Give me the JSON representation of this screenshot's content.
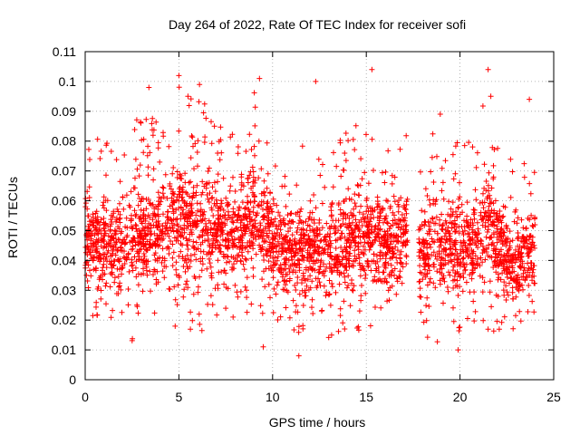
{
  "chart_data": {
    "type": "scatter",
    "title": "Day 264 of 2022, Rate Of TEC Index for receiver sofi",
    "xlabel": "GPS time / hours",
    "ylabel": "ROTI / TECUs",
    "xlim": [
      0,
      25
    ],
    "ylim": [
      0,
      0.11
    ],
    "xticks": [
      0,
      5,
      10,
      15,
      20,
      25
    ],
    "yticks": [
      0,
      0.01,
      0.02,
      0.03,
      0.04,
      0.05,
      0.06,
      0.07,
      0.08,
      0.09,
      0.1,
      0.11
    ],
    "xtick_labels": [
      "0",
      "5",
      "10",
      "15",
      "20",
      "25"
    ],
    "ytick_labels": [
      "0",
      "0.01",
      "0.02",
      "0.03",
      "0.04",
      "0.05",
      "0.06",
      "0.07",
      "0.08",
      "0.09",
      "0.1",
      "0.11"
    ],
    "grid": true,
    "marker": "+",
    "color": "#ff0000",
    "data_x_range": [
      0,
      24
    ],
    "data_gap": [
      17.2,
      17.8
    ],
    "envelope": [
      {
        "x": 0.0,
        "low": 0.02,
        "high": 0.083
      },
      {
        "x": 1.0,
        "low": 0.018,
        "high": 0.08
      },
      {
        "x": 2.0,
        "low": 0.02,
        "high": 0.078
      },
      {
        "x": 2.5,
        "low": 0.012,
        "high": 0.096
      },
      {
        "x": 3.0,
        "low": 0.018,
        "high": 0.088
      },
      {
        "x": 4.0,
        "low": 0.02,
        "high": 0.088
      },
      {
        "x": 5.0,
        "low": 0.012,
        "high": 0.102
      },
      {
        "x": 6.0,
        "low": 0.016,
        "high": 0.098
      },
      {
        "x": 7.0,
        "low": 0.018,
        "high": 0.088
      },
      {
        "x": 8.0,
        "low": 0.02,
        "high": 0.085
      },
      {
        "x": 9.0,
        "low": 0.02,
        "high": 0.1
      },
      {
        "x": 10.0,
        "low": 0.018,
        "high": 0.08
      },
      {
        "x": 11.0,
        "low": 0.016,
        "high": 0.076
      },
      {
        "x": 12.0,
        "low": 0.014,
        "high": 0.08
      },
      {
        "x": 13.0,
        "low": 0.014,
        "high": 0.08
      },
      {
        "x": 14.0,
        "low": 0.014,
        "high": 0.088
      },
      {
        "x": 15.0,
        "low": 0.014,
        "high": 0.089
      },
      {
        "x": 16.0,
        "low": 0.016,
        "high": 0.082
      },
      {
        "x": 17.0,
        "low": 0.02,
        "high": 0.082
      },
      {
        "x": 18.0,
        "low": 0.014,
        "high": 0.082
      },
      {
        "x": 19.0,
        "low": 0.012,
        "high": 0.09
      },
      {
        "x": 20.0,
        "low": 0.016,
        "high": 0.078
      },
      {
        "x": 21.0,
        "low": 0.016,
        "high": 0.085
      },
      {
        "x": 21.5,
        "low": 0.016,
        "high": 0.104
      },
      {
        "x": 22.0,
        "low": 0.016,
        "high": 0.08
      },
      {
        "x": 23.0,
        "low": 0.014,
        "high": 0.072
      },
      {
        "x": 24.0,
        "low": 0.02,
        "high": 0.08
      }
    ],
    "outliers": [
      {
        "x": 5.0,
        "y": 0.102
      },
      {
        "x": 9.3,
        "y": 0.101
      },
      {
        "x": 12.3,
        "y": 0.1
      },
      {
        "x": 15.3,
        "y": 0.104
      },
      {
        "x": 21.5,
        "y": 0.104
      },
      {
        "x": 23.7,
        "y": 0.094
      },
      {
        "x": 3.4,
        "y": 0.098
      },
      {
        "x": 6.1,
        "y": 0.099
      },
      {
        "x": 11.4,
        "y": 0.008
      },
      {
        "x": 19.9,
        "y": 0.01
      },
      {
        "x": 9.5,
        "y": 0.011
      }
    ]
  }
}
